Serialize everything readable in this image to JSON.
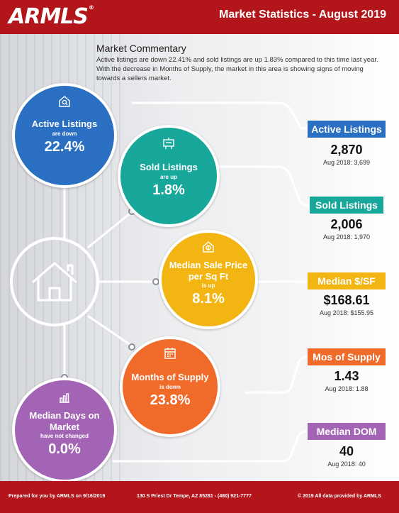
{
  "header": {
    "logo": "ARMLS",
    "logo_mark": "®",
    "title": "Market Statistics - August 2019"
  },
  "commentary": {
    "title": "Market Commentary",
    "body": "Active listings are down 22.41% and sold listings are up 1.83% compared to this time last year. With the decrease in Months of Supply, the market in this area is showing signs of moving towards a sellers market."
  },
  "circles": [
    {
      "name": "Active Listings",
      "direction": "are down",
      "percent": "22.4%",
      "color": "#2a6fc2",
      "icon": "house-search-icon"
    },
    {
      "name": "Sold Listings",
      "direction": "are up",
      "percent": "1.8%",
      "color": "#17a79b",
      "icon": "sign-icon"
    },
    {
      "name": "Median Sale Price per Sq Ft",
      "direction": "is up",
      "percent": "8.1%",
      "color": "#f2b512",
      "icon": "price-house-icon"
    },
    {
      "name": "Months of Supply",
      "direction": "is down",
      "percent": "23.8%",
      "color": "#f06a2a",
      "icon": "calendar-icon"
    },
    {
      "name": "Median Days on Market",
      "direction": "have not changed",
      "percent": "0.0%",
      "color": "#a364b5",
      "icon": "bar-chart-icon"
    }
  ],
  "stats": [
    {
      "label": "Active Listings",
      "value": "2,870",
      "previous": "Aug 2018: 3,699",
      "color": "#2a6fc2"
    },
    {
      "label": "Sold Listings",
      "value": "2,006",
      "previous": "Aug 2018: 1,970",
      "color": "#17a79b"
    },
    {
      "label": "Median $/SF",
      "value": "$168.61",
      "previous": "Aug 2018: $155.95",
      "color": "#f2b512"
    },
    {
      "label": "Mos of Supply",
      "value": "1.43",
      "previous": "Aug 2018: 1.88",
      "color": "#f06a2a"
    },
    {
      "label": "Median DOM",
      "value": "40",
      "previous": "Aug 2018: 40",
      "color": "#a364b5"
    }
  ],
  "footer": {
    "prepared": "Prepared for you by ARMLS on 9/16/2019",
    "address": "130 S Priest Dr  Tempe, AZ 85281 - (480) 921-7777",
    "copyright": "© 2019 All data provided by ARMLS"
  }
}
